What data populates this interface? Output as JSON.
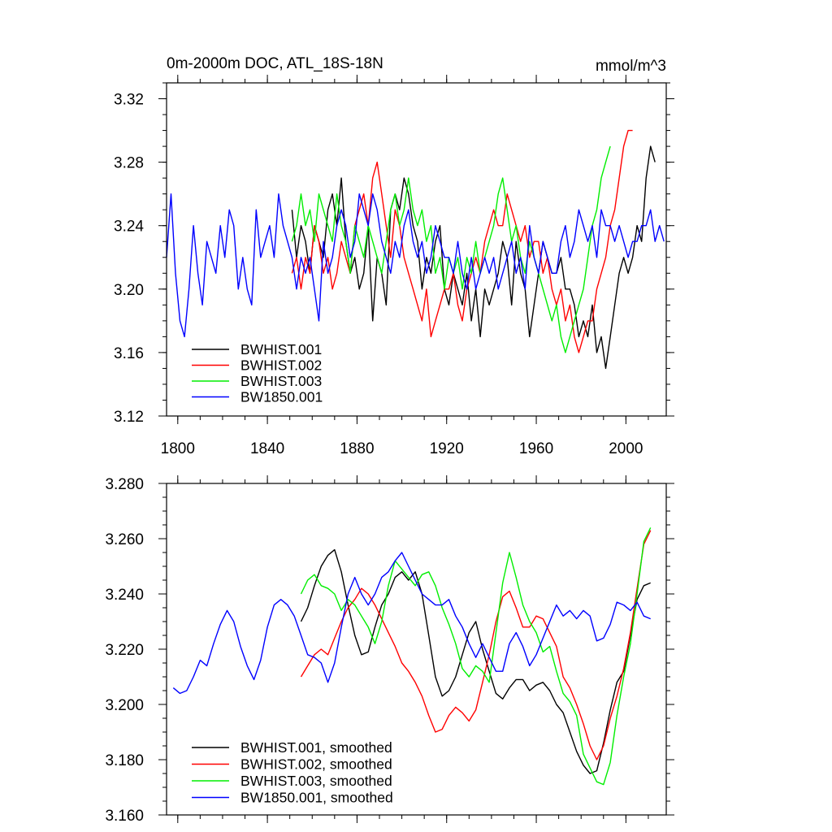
{
  "chart_data": [
    {
      "type": "line",
      "title": "0m-2000m DOC, ATL_18S-18N",
      "units": "mmol/m^3",
      "xlim": [
        1795,
        2018
      ],
      "ylim": [
        3.12,
        3.33
      ],
      "x_ticks": [
        1800,
        1840,
        1880,
        1920,
        1960,
        2000
      ],
      "x_tick_labels": [
        "1800",
        "1840",
        "1880",
        "1920",
        "1960",
        "2000"
      ],
      "y_ticks": [
        3.12,
        3.16,
        3.2,
        3.24,
        3.28,
        3.32
      ],
      "y_tick_labels": [
        "3.12",
        "3.16",
        "3.20",
        "3.24",
        "3.28",
        "3.32"
      ],
      "legend_position": "bottom-left",
      "series": [
        {
          "name": "BWHIST.001",
          "color": "#000000",
          "x_start": 1851,
          "x_step": 2,
          "values": [
            3.25,
            3.22,
            3.24,
            3.23,
            3.21,
            3.24,
            3.23,
            3.22,
            3.25,
            3.26,
            3.24,
            3.27,
            3.23,
            3.21,
            3.22,
            3.2,
            3.21,
            3.24,
            3.18,
            3.22,
            3.21,
            3.19,
            3.25,
            3.26,
            3.25,
            3.27,
            3.26,
            3.24,
            3.23,
            3.2,
            3.22,
            3.21,
            3.23,
            3.24,
            3.2,
            3.19,
            3.21,
            3.2,
            3.19,
            3.21,
            3.18,
            3.2,
            3.17,
            3.2,
            3.19,
            3.2,
            3.21,
            3.23,
            3.22,
            3.19,
            3.23,
            3.21,
            3.2,
            3.17,
            3.19,
            3.21,
            3.23,
            3.22,
            3.21,
            3.21,
            3.22,
            3.2,
            3.2,
            3.19,
            3.17,
            3.18,
            3.17,
            3.19,
            3.16,
            3.17,
            3.15,
            3.17,
            3.19,
            3.21,
            3.22,
            3.21,
            3.22,
            3.24,
            3.23,
            3.27,
            3.29,
            3.28
          ]
        },
        {
          "name": "BWHIST.002",
          "color": "#ff0000",
          "x_start": 1851,
          "x_step": 2,
          "values": [
            3.21,
            3.22,
            3.2,
            3.22,
            3.21,
            3.24,
            3.23,
            3.21,
            3.22,
            3.2,
            3.21,
            3.23,
            3.22,
            3.21,
            3.24,
            3.25,
            3.26,
            3.24,
            3.27,
            3.28,
            3.26,
            3.24,
            3.22,
            3.25,
            3.24,
            3.22,
            3.21,
            3.2,
            3.19,
            3.18,
            3.2,
            3.17,
            3.18,
            3.19,
            3.2,
            3.2,
            3.21,
            3.19,
            3.18,
            3.2,
            3.21,
            3.22,
            3.21,
            3.23,
            3.24,
            3.25,
            3.24,
            3.24,
            3.26,
            3.25,
            3.24,
            3.23,
            3.24,
            3.22,
            3.23,
            3.23,
            3.21,
            3.22,
            3.2,
            3.19,
            3.2,
            3.18,
            3.19,
            3.17,
            3.16,
            3.17,
            3.18,
            3.18,
            3.2,
            3.21,
            3.22,
            3.24,
            3.25,
            3.27,
            3.29,
            3.3,
            3.3
          ]
        },
        {
          "name": "BWHIST.003",
          "color": "#00ee00",
          "x_start": 1851,
          "x_step": 2,
          "values": [
            3.23,
            3.24,
            3.26,
            3.24,
            3.25,
            3.23,
            3.26,
            3.25,
            3.24,
            3.23,
            3.26,
            3.24,
            3.23,
            3.21,
            3.24,
            3.23,
            3.22,
            3.24,
            3.23,
            3.22,
            3.21,
            3.23,
            3.25,
            3.26,
            3.24,
            3.25,
            3.27,
            3.25,
            3.24,
            3.25,
            3.23,
            3.24,
            3.21,
            3.22,
            3.2,
            3.22,
            3.21,
            3.22,
            3.2,
            3.22,
            3.21,
            3.23,
            3.21,
            3.22,
            3.23,
            3.24,
            3.26,
            3.27,
            3.25,
            3.23,
            3.24,
            3.22,
            3.21,
            3.23,
            3.22,
            3.21,
            3.2,
            3.19,
            3.18,
            3.19,
            3.17,
            3.16,
            3.17,
            3.18,
            3.19,
            3.2,
            3.22,
            3.24,
            3.25,
            3.27,
            3.28,
            3.29
          ]
        },
        {
          "name": "BW1850.001",
          "color": "#0000ff",
          "x_start": 1795,
          "x_step": 2,
          "values": [
            3.22,
            3.26,
            3.21,
            3.18,
            3.17,
            3.2,
            3.24,
            3.21,
            3.19,
            3.23,
            3.22,
            3.21,
            3.24,
            3.22,
            3.25,
            3.24,
            3.2,
            3.22,
            3.2,
            3.19,
            3.25,
            3.22,
            3.23,
            3.24,
            3.22,
            3.26,
            3.24,
            3.23,
            3.22,
            3.2,
            3.22,
            3.21,
            3.22,
            3.2,
            3.18,
            3.23,
            3.21,
            3.22,
            3.24,
            3.25,
            3.24,
            3.22,
            3.23,
            3.26,
            3.25,
            3.24,
            3.26,
            3.25,
            3.23,
            3.22,
            3.21,
            3.23,
            3.22,
            3.24,
            3.25,
            3.23,
            3.22,
            3.23,
            3.21,
            3.22,
            3.24,
            3.23,
            3.22,
            3.22,
            3.21,
            3.23,
            3.21,
            3.2,
            3.22,
            3.2,
            3.21,
            3.22,
            3.21,
            3.22,
            3.2,
            3.21,
            3.22,
            3.23,
            3.21,
            3.22,
            3.2,
            3.24,
            3.22,
            3.21,
            3.23,
            3.22,
            3.21,
            3.21,
            3.23,
            3.24,
            3.22,
            3.23,
            3.25,
            3.24,
            3.23,
            3.24,
            3.22,
            3.25,
            3.24,
            3.24,
            3.23,
            3.24,
            3.23,
            3.22,
            3.23,
            3.23,
            3.24,
            3.24,
            3.25,
            3.23,
            3.24,
            3.23
          ]
        }
      ],
      "legend_labels": [
        "BWHIST.001",
        "BWHIST.002",
        "BWHIST.003",
        "BW1850.001"
      ]
    },
    {
      "type": "line",
      "title": "",
      "xlim": [
        1795,
        2018
      ],
      "ylim": [
        3.16,
        3.28
      ],
      "x_ticks": [
        1800,
        1840,
        1880,
        1920,
        1960,
        2000
      ],
      "y_ticks": [
        3.16,
        3.18,
        3.2,
        3.22,
        3.24,
        3.26,
        3.28
      ],
      "y_tick_labels": [
        "3.160",
        "3.180",
        "3.200",
        "3.220",
        "3.240",
        "3.260",
        "3.280"
      ],
      "legend_position": "bottom-left",
      "series": [
        {
          "name": "BWHIST.001, smoothed",
          "color": "#000000",
          "x": [
            1855,
            1858,
            1861,
            1864,
            1867,
            1870,
            1873,
            1876,
            1879,
            1882,
            1885,
            1888,
            1891,
            1894,
            1897,
            1900,
            1903,
            1906,
            1909,
            1912,
            1915,
            1918,
            1921,
            1924,
            1927,
            1930,
            1933,
            1936,
            1939,
            1942,
            1945,
            1948,
            1951,
            1954,
            1957,
            1960,
            1963,
            1966,
            1969,
            1972,
            1975,
            1978,
            1981,
            1984,
            1987,
            1990,
            1993,
            1996,
            1999,
            2002,
            2005,
            2008,
            2011
          ],
          "y": [
            3.23,
            3.235,
            3.243,
            3.25,
            3.254,
            3.256,
            3.248,
            3.236,
            3.225,
            3.218,
            3.219,
            3.228,
            3.236,
            3.24,
            3.246,
            3.248,
            3.245,
            3.248,
            3.24,
            3.225,
            3.21,
            3.203,
            3.205,
            3.21,
            3.218,
            3.226,
            3.23,
            3.22,
            3.212,
            3.204,
            3.202,
            3.206,
            3.209,
            3.209,
            3.205,
            3.207,
            3.208,
            3.205,
            3.2,
            3.197,
            3.19,
            3.183,
            3.178,
            3.175,
            3.176,
            3.186,
            3.198,
            3.208,
            3.212,
            3.225,
            3.238,
            3.243,
            3.244
          ]
        },
        {
          "name": "BWHIST.002, smoothed",
          "color": "#ff0000",
          "x": [
            1855,
            1858,
            1861,
            1864,
            1867,
            1870,
            1873,
            1876,
            1879,
            1882,
            1885,
            1888,
            1891,
            1894,
            1897,
            1900,
            1903,
            1906,
            1909,
            1912,
            1915,
            1918,
            1921,
            1924,
            1927,
            1930,
            1933,
            1936,
            1939,
            1942,
            1945,
            1948,
            1951,
            1954,
            1957,
            1960,
            1963,
            1966,
            1969,
            1972,
            1975,
            1978,
            1981,
            1984,
            1987,
            1990,
            1993,
            1996,
            1999,
            2002,
            2005,
            2008,
            2011
          ],
          "y": [
            3.21,
            3.214,
            3.218,
            3.22,
            3.218,
            3.224,
            3.23,
            3.235,
            3.238,
            3.242,
            3.24,
            3.236,
            3.231,
            3.226,
            3.221,
            3.215,
            3.212,
            3.208,
            3.203,
            3.196,
            3.19,
            3.191,
            3.196,
            3.199,
            3.197,
            3.194,
            3.198,
            3.208,
            3.218,
            3.23,
            3.239,
            3.241,
            3.235,
            3.228,
            3.228,
            3.232,
            3.231,
            3.226,
            3.221,
            3.21,
            3.206,
            3.2,
            3.193,
            3.185,
            3.18,
            3.185,
            3.195,
            3.203,
            3.213,
            3.226,
            3.242,
            3.258,
            3.263
          ]
        },
        {
          "name": "BWHIST.003, smoothed",
          "color": "#00ee00",
          "x": [
            1855,
            1858,
            1861,
            1864,
            1867,
            1870,
            1873,
            1876,
            1879,
            1882,
            1885,
            1888,
            1891,
            1894,
            1897,
            1900,
            1903,
            1906,
            1909,
            1912,
            1915,
            1918,
            1921,
            1924,
            1927,
            1930,
            1933,
            1936,
            1939,
            1942,
            1945,
            1948,
            1951,
            1954,
            1957,
            1960,
            1963,
            1966,
            1969,
            1972,
            1975,
            1978,
            1981,
            1984,
            1987,
            1990,
            1993,
            1996,
            1999,
            2002,
            2005,
            2008,
            2011
          ],
          "y": [
            3.24,
            3.245,
            3.247,
            3.243,
            3.242,
            3.24,
            3.234,
            3.238,
            3.236,
            3.232,
            3.228,
            3.222,
            3.23,
            3.243,
            3.252,
            3.249,
            3.246,
            3.243,
            3.247,
            3.248,
            3.243,
            3.235,
            3.229,
            3.222,
            3.213,
            3.21,
            3.214,
            3.212,
            3.208,
            3.226,
            3.244,
            3.255,
            3.246,
            3.236,
            3.23,
            3.226,
            3.219,
            3.221,
            3.212,
            3.204,
            3.201,
            3.196,
            3.182,
            3.177,
            3.172,
            3.171,
            3.179,
            3.196,
            3.21,
            3.222,
            3.24,
            3.259,
            3.264
          ]
        },
        {
          "name": "BW1850.001, smoothed",
          "color": "#0000ff",
          "x": [
            1798,
            1801,
            1804,
            1807,
            1810,
            1813,
            1816,
            1819,
            1822,
            1825,
            1828,
            1831,
            1834,
            1837,
            1840,
            1843,
            1846,
            1849,
            1852,
            1855,
            1858,
            1861,
            1864,
            1867,
            1870,
            1873,
            1876,
            1879,
            1882,
            1885,
            1888,
            1891,
            1894,
            1897,
            1900,
            1903,
            1906,
            1909,
            1912,
            1915,
            1918,
            1921,
            1924,
            1927,
            1930,
            1933,
            1936,
            1939,
            1942,
            1945,
            1948,
            1951,
            1954,
            1957,
            1960,
            1963,
            1966,
            1969,
            1972,
            1975,
            1978,
            1981,
            1984,
            1987,
            1990,
            1993,
            1996,
            1999,
            2002,
            2005,
            2008,
            2011
          ],
          "y": [
            3.206,
            3.204,
            3.205,
            3.21,
            3.216,
            3.214,
            3.222,
            3.229,
            3.234,
            3.23,
            3.221,
            3.214,
            3.209,
            3.216,
            3.228,
            3.236,
            3.238,
            3.236,
            3.232,
            3.225,
            3.218,
            3.217,
            3.215,
            3.208,
            3.215,
            3.228,
            3.24,
            3.246,
            3.24,
            3.236,
            3.24,
            3.246,
            3.248,
            3.252,
            3.255,
            3.25,
            3.245,
            3.24,
            3.238,
            3.236,
            3.236,
            3.238,
            3.232,
            3.228,
            3.222,
            3.217,
            3.222,
            3.217,
            3.212,
            3.212,
            3.222,
            3.226,
            3.221,
            3.214,
            3.218,
            3.224,
            3.23,
            3.236,
            3.232,
            3.234,
            3.231,
            3.234,
            3.232,
            3.223,
            3.224,
            3.229,
            3.237,
            3.236,
            3.234,
            3.237,
            3.232,
            3.231
          ]
        }
      ],
      "legend_labels": [
        "BWHIST.001, smoothed",
        "BWHIST.002, smoothed",
        "BWHIST.003, smoothed",
        "BW1850.001, smoothed"
      ]
    }
  ]
}
